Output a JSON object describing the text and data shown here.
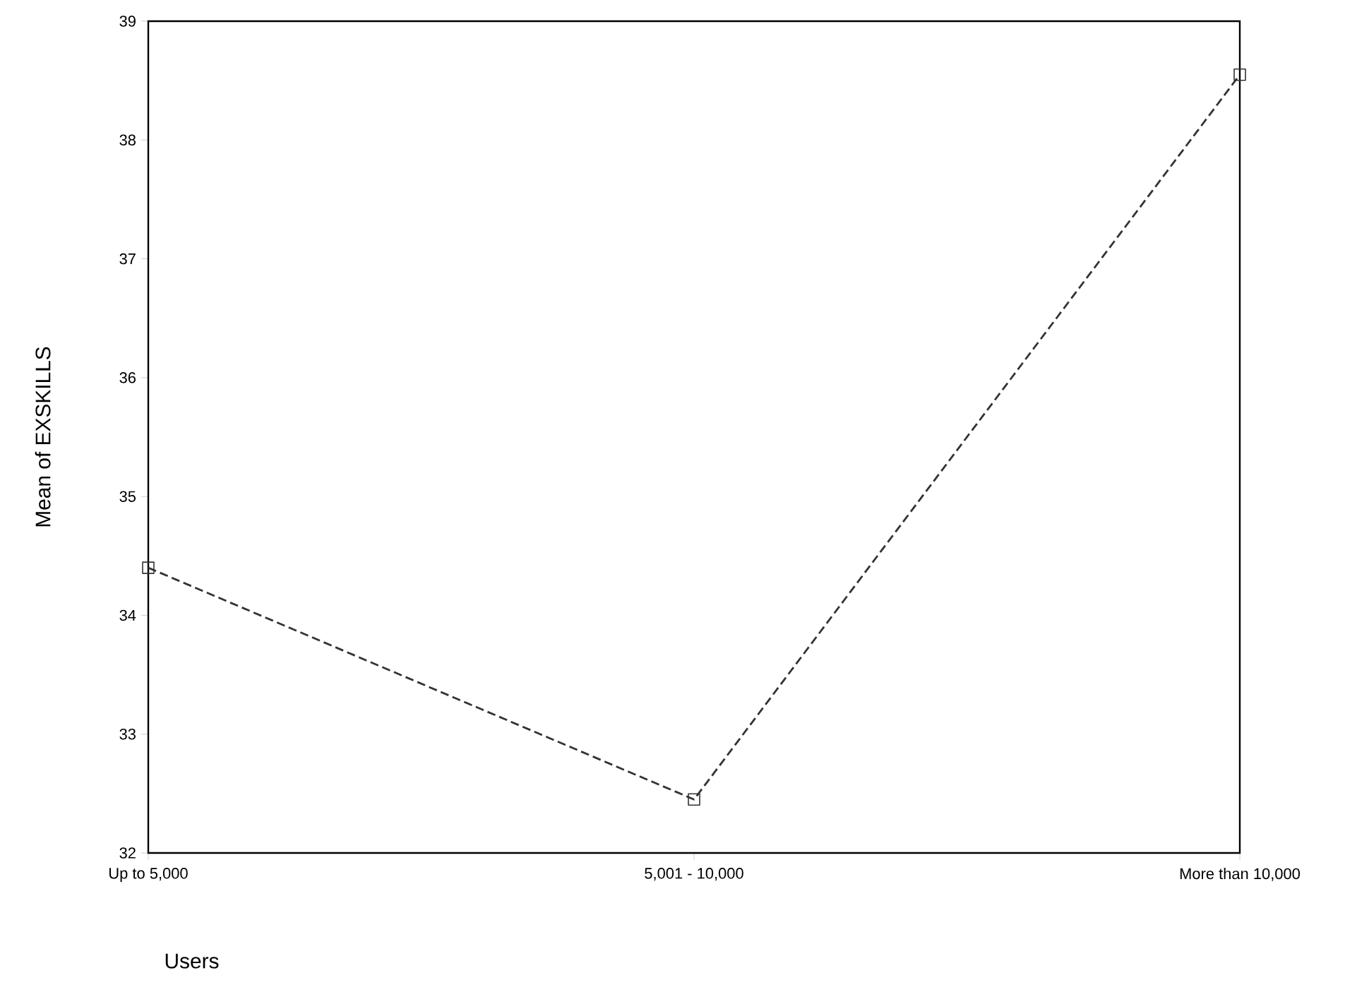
{
  "chart_data": {
    "type": "line",
    "xlabel": "Users",
    "ylabel": "Mean of EXSKILLS",
    "categories": [
      "Up to 5,000",
      "5,001 - 10,000",
      "More than 10,000"
    ],
    "values": [
      34.4,
      32.45,
      38.55
    ],
    "color": "#333333",
    "ylim": [
      32,
      39
    ],
    "yticks": [
      32,
      33,
      34,
      35,
      36,
      37,
      38,
      39
    ],
    "marker": "square",
    "line_style": "dashed",
    "grid": false
  }
}
